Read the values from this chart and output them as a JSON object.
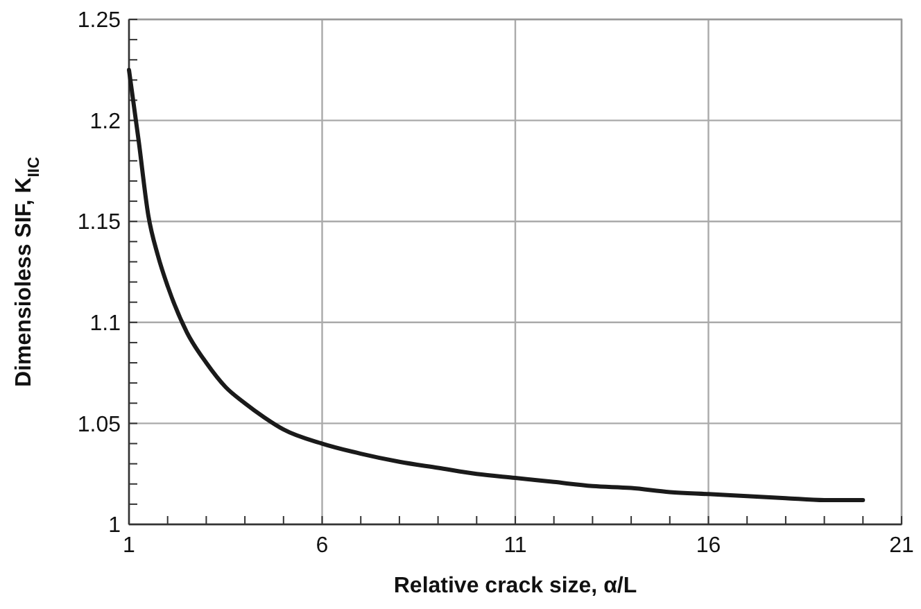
{
  "chart_data": {
    "type": "line",
    "xlabel": "Relative crack size, α/L",
    "ylabel": "Dimensioless SIF, K$_{IIC}$",
    "x": [
      1,
      1.25,
      1.5,
      1.75,
      2,
      2.5,
      3,
      3.5,
      4,
      4.5,
      5,
      6,
      7,
      8,
      9,
      10,
      11,
      12,
      13,
      14,
      15,
      16,
      17,
      18,
      19,
      20
    ],
    "series": [
      {
        "color": "#1a1a1a",
        "values": [
          1.225,
          1.19,
          1.153,
          1.133,
          1.118,
          1.095,
          1.08,
          1.068,
          1.06,
          1.053,
          1.047,
          1.04,
          1.035,
          1.031,
          1.028,
          1.025,
          1.023,
          1.021,
          1.019,
          1.018,
          1.016,
          1.015,
          1.014,
          1.013,
          1.012,
          1.012
        ]
      }
    ],
    "xlim": [
      1,
      21
    ],
    "ylim": [
      1,
      1.25
    ],
    "xticks": [
      1,
      {
        "value": 2,
        "label": null
      },
      {
        "value": 3,
        "label": null
      },
      {
        "value": 4,
        "label": null
      },
      {
        "value": 5,
        "label": null
      },
      6,
      {
        "value": 7,
        "label": null
      },
      {
        "value": 8,
        "label": null
      },
      {
        "value": 9,
        "label": null
      },
      {
        "value": 10,
        "label": null
      },
      11,
      {
        "value": 12,
        "label": null
      },
      {
        "value": 13,
        "label": null
      },
      {
        "value": 14,
        "label": null
      },
      {
        "value": 15,
        "label": null
      },
      16,
      {
        "value": 17,
        "label": null
      },
      {
        "value": 18,
        "label": null
      },
      {
        "value": 19,
        "label": null
      },
      {
        "value": 20,
        "label": null
      },
      21
    ],
    "yticks": [
      1,
      {
        "value": 1.01,
        "label": null
      },
      {
        "value": 1.02,
        "label": null
      },
      {
        "value": 1.03,
        "label": null
      },
      {
        "value": 1.04,
        "label": null
      },
      1.05,
      {
        "value": 1.06,
        "label": null
      },
      {
        "value": 1.07,
        "label": null
      },
      {
        "value": 1.08,
        "label": null
      },
      {
        "value": 1.09,
        "label": null
      },
      1.1,
      {
        "value": 1.11,
        "label": null
      },
      {
        "value": 1.12,
        "label": null
      },
      {
        "value": 1.13,
        "label": null
      },
      {
        "value": 1.14,
        "label": null
      },
      1.15,
      {
        "value": 1.16,
        "label": null
      },
      {
        "value": 1.17,
        "label": null
      },
      {
        "value": 1.18,
        "label": null
      },
      {
        "value": 1.19,
        "label": null
      },
      1.2,
      {
        "value": 1.21,
        "label": null
      },
      {
        "value": 1.22,
        "label": null
      },
      {
        "value": 1.23,
        "label": null
      },
      {
        "value": 1.24,
        "label": null
      },
      1.25
    ],
    "grid": true,
    "line_style": "solid",
    "marker": "none"
  }
}
